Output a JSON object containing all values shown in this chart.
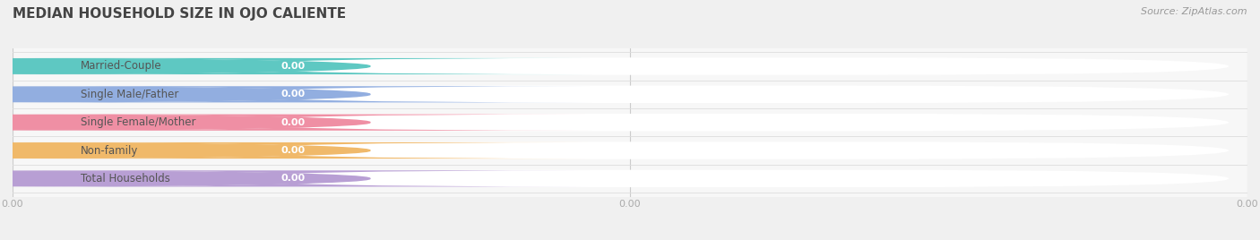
{
  "title": "MEDIAN HOUSEHOLD SIZE IN OJO CALIENTE",
  "source": "Source: ZipAtlas.com",
  "categories": [
    "Married-Couple",
    "Single Male/Father",
    "Single Female/Mother",
    "Non-family",
    "Total Households"
  ],
  "values": [
    0.0,
    0.0,
    0.0,
    0.0,
    0.0
  ],
  "bar_colors": [
    "#5ec8c2",
    "#92aee0",
    "#ef8fa4",
    "#f0b96a",
    "#b89fd4"
  ],
  "background_color": "#f0f0f0",
  "plot_bg_color": "#f7f7f7",
  "bar_bg_color": "#ffffff",
  "title_fontsize": 11,
  "label_fontsize": 8.5,
  "value_fontsize": 8,
  "source_fontsize": 8,
  "tick_color": "#aaaaaa",
  "label_color": "#555555",
  "title_color": "#444444"
}
